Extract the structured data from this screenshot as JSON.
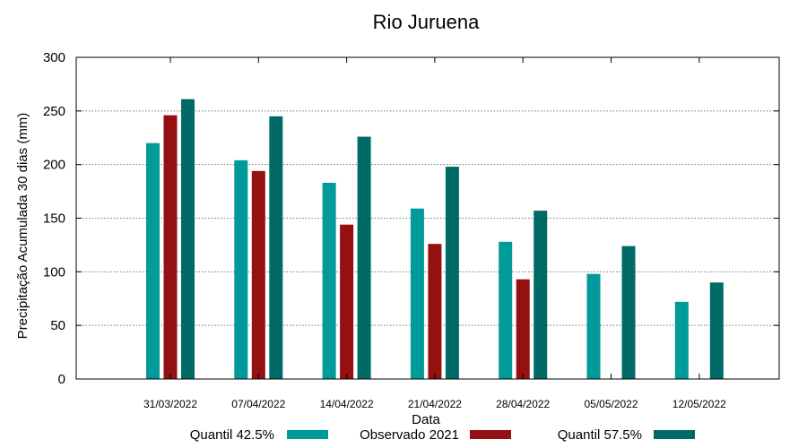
{
  "chart_data": {
    "type": "bar",
    "title": "Rio Juruena",
    "xlabel": "Data",
    "ylabel": "Precipitação Acumulada 30 dias (mm)",
    "ylim": [
      0,
      300
    ],
    "yticks": [
      0,
      50,
      100,
      150,
      200,
      250,
      300
    ],
    "grid": true,
    "legend_position": "bottom",
    "categories": [
      "31/03/2022",
      "07/04/2022",
      "14/04/2022",
      "21/04/2022",
      "28/04/2022",
      "05/05/2022",
      "12/05/2022"
    ],
    "series": [
      {
        "name": "Quantil 42.5%",
        "color": "#009a9a",
        "values": [
          220,
          204,
          183,
          159,
          128,
          98,
          72
        ]
      },
      {
        "name": "Observado 2021",
        "color": "#951010",
        "values": [
          246,
          194,
          144,
          126,
          93,
          null,
          null
        ]
      },
      {
        "name": "Quantil 57.5%",
        "color": "#006b66",
        "values": [
          261,
          245,
          226,
          198,
          157,
          124,
          90
        ]
      }
    ]
  }
}
